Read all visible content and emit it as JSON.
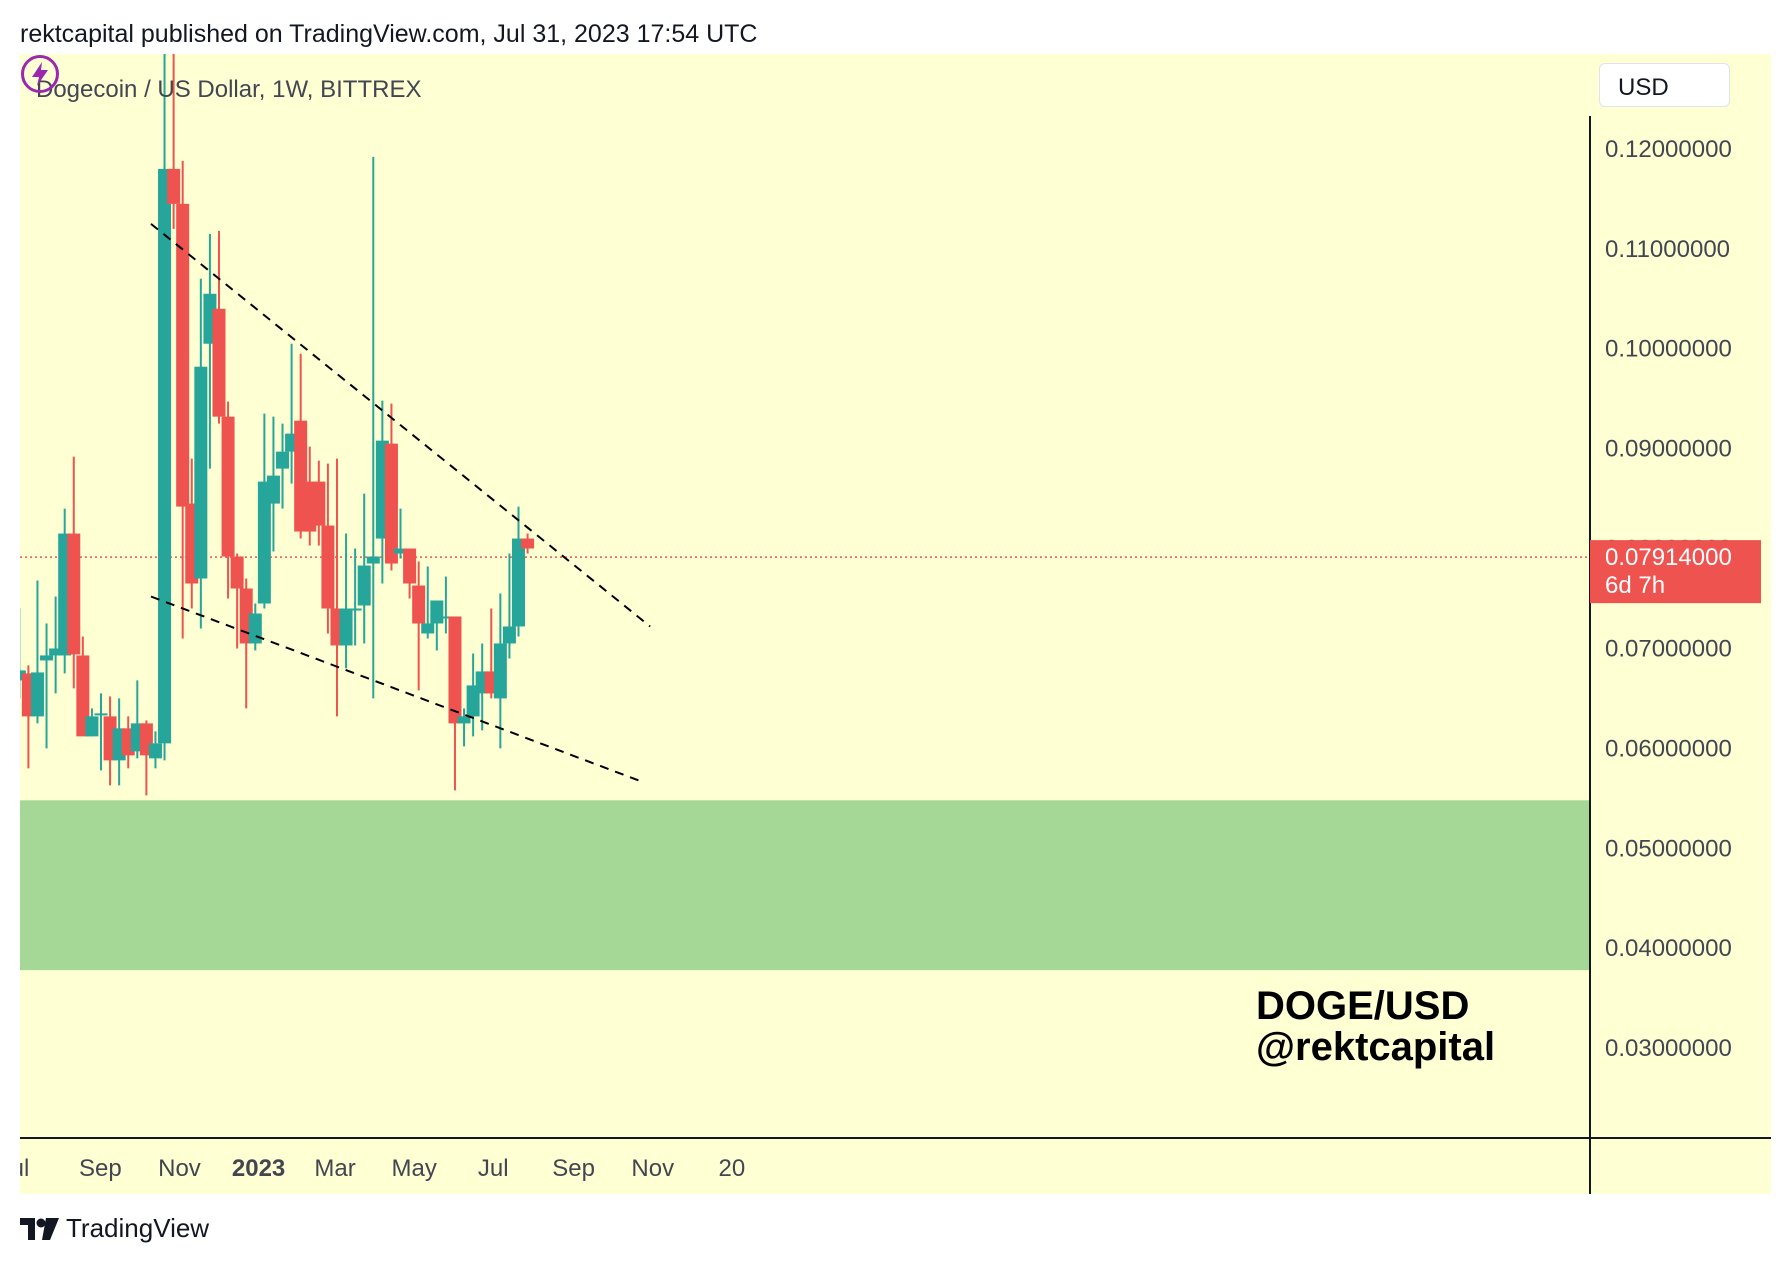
{
  "header": {
    "published": "rektcapital published on TradingView.com, Jul 31, 2023 17:54 UTC"
  },
  "chart": {
    "symbol_title": "Dogecoin / US Dollar, 1W, BITTREX",
    "currency": "USD",
    "watermark_line1": "DOGE/USD",
    "watermark_line2": "@rektcapital",
    "last_price_label": "0.07914000",
    "countdown_label": "6d 7h",
    "icons": [
      "lightning-bolt-icon",
      "tradingview-logo-icon"
    ]
  },
  "footer": {
    "brand": "TradingView"
  },
  "colors": {
    "background": "#feffd3",
    "bullish": "#26a69a",
    "bearish": "#ef5350",
    "support_zone": "#a5d796",
    "price_line": "#ef5350"
  },
  "chart_data": {
    "type": "candlestick",
    "title": "",
    "interval": "1W",
    "y_axis_position": "right",
    "ylim": [
      0.021,
      0.1295
    ],
    "y_ticks": [
      "0.03000000",
      "0.04000000",
      "0.05000000",
      "0.06000000",
      "0.07000000",
      "0.08000000",
      "0.09000000",
      "0.10000000",
      "0.11000000",
      "0.12000000"
    ],
    "x_ticks": [
      {
        "label": "ul",
        "date": "2022-07-01",
        "bold": false
      },
      {
        "label": "Sep",
        "date": "2022-09-01",
        "bold": false
      },
      {
        "label": "Nov",
        "date": "2022-11-01",
        "bold": false
      },
      {
        "label": "2023",
        "date": "2023-01-01",
        "bold": true
      },
      {
        "label": "Mar",
        "date": "2023-03-01",
        "bold": false
      },
      {
        "label": "May",
        "date": "2023-05-01",
        "bold": false
      },
      {
        "label": "Jul",
        "date": "2023-07-01",
        "bold": false
      },
      {
        "label": "Sep",
        "date": "2023-09-01",
        "bold": false
      },
      {
        "label": "Nov",
        "date": "2023-11-01",
        "bold": false
      },
      {
        "label": "20",
        "date": "2024-01-01",
        "bold": false
      }
    ],
    "last_price": 0.07914,
    "support_zone": {
      "low": 0.0378,
      "high": 0.0548
    },
    "trendlines": [
      {
        "name": "upper",
        "start": {
          "date": "2022-10-10",
          "price": 0.1125
        },
        "end": {
          "date": "2023-10-30",
          "price": 0.0722
        }
      },
      {
        "name": "lower",
        "start": {
          "date": "2022-10-10",
          "price": 0.0752
        },
        "end": {
          "date": "2023-10-23",
          "price": 0.0567
        }
      }
    ],
    "candles": [
      {
        "date": "2022-06-27",
        "o": 0.0668,
        "h": 0.074,
        "l": 0.065,
        "c": 0.0678
      },
      {
        "date": "2022-07-04",
        "o": 0.0675,
        "h": 0.0683,
        "l": 0.058,
        "c": 0.0632
      },
      {
        "date": "2022-07-11",
        "o": 0.0632,
        "h": 0.0768,
        "l": 0.0625,
        "c": 0.0676
      },
      {
        "date": "2022-07-18",
        "o": 0.0688,
        "h": 0.0725,
        "l": 0.06,
        "c": 0.0693
      },
      {
        "date": "2022-07-25",
        "o": 0.0693,
        "h": 0.0752,
        "l": 0.0655,
        "c": 0.07
      },
      {
        "date": "2022-08-01",
        "o": 0.0693,
        "h": 0.084,
        "l": 0.0675,
        "c": 0.0815
      },
      {
        "date": "2022-08-08",
        "o": 0.0815,
        "h": 0.0892,
        "l": 0.066,
        "c": 0.0694
      },
      {
        "date": "2022-08-15",
        "o": 0.0693,
        "h": 0.0712,
        "l": 0.0615,
        "c": 0.0612
      },
      {
        "date": "2022-08-22",
        "o": 0.0612,
        "h": 0.064,
        "l": 0.0612,
        "c": 0.0632
      },
      {
        "date": "2022-08-29",
        "o": 0.0635,
        "h": 0.0655,
        "l": 0.0578,
        "c": 0.0635
      },
      {
        "date": "2022-09-05",
        "o": 0.0632,
        "h": 0.0652,
        "l": 0.0563,
        "c": 0.0588
      },
      {
        "date": "2022-09-12",
        "o": 0.0588,
        "h": 0.065,
        "l": 0.0563,
        "c": 0.062
      },
      {
        "date": "2022-09-19",
        "o": 0.062,
        "h": 0.0632,
        "l": 0.058,
        "c": 0.0593
      },
      {
        "date": "2022-09-26",
        "o": 0.0597,
        "h": 0.0668,
        "l": 0.059,
        "c": 0.0625
      },
      {
        "date": "2022-10-03",
        "o": 0.0625,
        "h": 0.0628,
        "l": 0.0553,
        "c": 0.0593
      },
      {
        "date": "2022-10-10",
        "o": 0.059,
        "h": 0.0617,
        "l": 0.058,
        "c": 0.0605
      },
      {
        "date": "2022-10-17",
        "o": 0.0605,
        "h": 0.131,
        "l": 0.0588,
        "c": 0.118
      },
      {
        "date": "2022-10-24",
        "o": 0.118,
        "h": 0.133,
        "l": 0.112,
        "c": 0.1145
      },
      {
        "date": "2022-10-31",
        "o": 0.1145,
        "h": 0.1188,
        "l": 0.071,
        "c": 0.0842
      },
      {
        "date": "2022-11-07",
        "o": 0.0845,
        "h": 0.089,
        "l": 0.074,
        "c": 0.0765
      },
      {
        "date": "2022-11-14",
        "o": 0.077,
        "h": 0.107,
        "l": 0.072,
        "c": 0.0982
      },
      {
        "date": "2022-11-21",
        "o": 0.1005,
        "h": 0.1115,
        "l": 0.088,
        "c": 0.1055
      },
      {
        "date": "2022-11-28",
        "o": 0.104,
        "h": 0.1118,
        "l": 0.0925,
        "c": 0.0932
      },
      {
        "date": "2022-12-05",
        "o": 0.0932,
        "h": 0.0947,
        "l": 0.075,
        "c": 0.0792
      },
      {
        "date": "2022-12-12",
        "o": 0.0792,
        "h": 0.0795,
        "l": 0.07,
        "c": 0.076
      },
      {
        "date": "2022-12-19",
        "o": 0.076,
        "h": 0.077,
        "l": 0.064,
        "c": 0.0705
      },
      {
        "date": "2022-12-26",
        "o": 0.0705,
        "h": 0.0745,
        "l": 0.0698,
        "c": 0.0735
      },
      {
        "date": "2023-01-02",
        "o": 0.0745,
        "h": 0.0935,
        "l": 0.074,
        "c": 0.0867
      },
      {
        "date": "2023-01-09",
        "o": 0.0845,
        "h": 0.0932,
        "l": 0.0797,
        "c": 0.0873
      },
      {
        "date": "2023-01-16",
        "o": 0.088,
        "h": 0.0925,
        "l": 0.084,
        "c": 0.0897
      },
      {
        "date": "2023-01-23",
        "o": 0.0897,
        "h": 0.1005,
        "l": 0.0865,
        "c": 0.0915
      },
      {
        "date": "2023-01-30",
        "o": 0.0928,
        "h": 0.0995,
        "l": 0.081,
        "c": 0.0817
      },
      {
        "date": "2023-02-06",
        "o": 0.0867,
        "h": 0.0902,
        "l": 0.0803,
        "c": 0.0817
      },
      {
        "date": "2023-02-13",
        "o": 0.0867,
        "h": 0.0888,
        "l": 0.0803,
        "c": 0.0823
      },
      {
        "date": "2023-02-20",
        "o": 0.0823,
        "h": 0.0885,
        "l": 0.0715,
        "c": 0.074
      },
      {
        "date": "2023-02-27",
        "o": 0.074,
        "h": 0.089,
        "l": 0.0632,
        "c": 0.0703
      },
      {
        "date": "2023-03-06",
        "o": 0.0703,
        "h": 0.0815,
        "l": 0.068,
        "c": 0.074
      },
      {
        "date": "2023-03-13",
        "o": 0.074,
        "h": 0.08,
        "l": 0.0703,
        "c": 0.074
      },
      {
        "date": "2023-03-20",
        "o": 0.0743,
        "h": 0.0855,
        "l": 0.0705,
        "c": 0.0783
      },
      {
        "date": "2023-03-27",
        "o": 0.0785,
        "h": 0.1192,
        "l": 0.065,
        "c": 0.0792
      },
      {
        "date": "2023-04-03",
        "o": 0.081,
        "h": 0.0948,
        "l": 0.0765,
        "c": 0.0908
      },
      {
        "date": "2023-04-10",
        "o": 0.0905,
        "h": 0.0945,
        "l": 0.0778,
        "c": 0.0785
      },
      {
        "date": "2023-04-17",
        "o": 0.0795,
        "h": 0.084,
        "l": 0.079,
        "c": 0.08
      },
      {
        "date": "2023-04-24",
        "o": 0.08,
        "h": 0.08,
        "l": 0.075,
        "c": 0.0765
      },
      {
        "date": "2023-05-01",
        "o": 0.0763,
        "h": 0.0787,
        "l": 0.0658,
        "c": 0.0725
      },
      {
        "date": "2023-05-08",
        "o": 0.0715,
        "h": 0.0782,
        "l": 0.071,
        "c": 0.0725
      },
      {
        "date": "2023-05-15",
        "o": 0.0725,
        "h": 0.0747,
        "l": 0.0698,
        "c": 0.0748
      },
      {
        "date": "2023-05-22",
        "o": 0.0732,
        "h": 0.0772,
        "l": 0.0715,
        "c": 0.0732
      },
      {
        "date": "2023-05-29",
        "o": 0.0732,
        "h": 0.0732,
        "l": 0.0558,
        "c": 0.0625
      },
      {
        "date": "2023-06-05",
        "o": 0.0625,
        "h": 0.064,
        "l": 0.0602,
        "c": 0.0632
      },
      {
        "date": "2023-06-12",
        "o": 0.0632,
        "h": 0.0695,
        "l": 0.0612,
        "c": 0.0663
      },
      {
        "date": "2023-06-19",
        "o": 0.0655,
        "h": 0.0705,
        "l": 0.0618,
        "c": 0.0677
      },
      {
        "date": "2023-06-26",
        "o": 0.0677,
        "h": 0.074,
        "l": 0.065,
        "c": 0.0655
      },
      {
        "date": "2023-07-03",
        "o": 0.065,
        "h": 0.0755,
        "l": 0.06,
        "c": 0.0705
      },
      {
        "date": "2023-07-10",
        "o": 0.0705,
        "h": 0.0795,
        "l": 0.069,
        "c": 0.0722
      },
      {
        "date": "2023-07-17",
        "o": 0.0722,
        "h": 0.0842,
        "l": 0.0712,
        "c": 0.081
      },
      {
        "date": "2023-07-24",
        "o": 0.081,
        "h": 0.0815,
        "l": 0.0795,
        "c": 0.08
      }
    ]
  }
}
